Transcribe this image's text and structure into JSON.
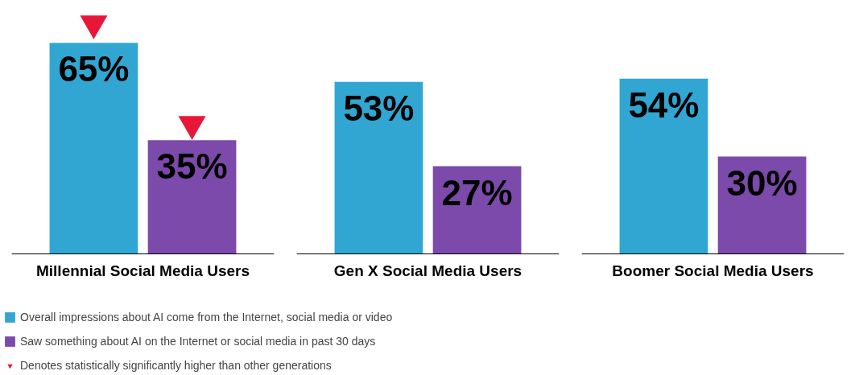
{
  "chart_data": {
    "type": "bar",
    "categories": [
      "Millennial Social Media Users",
      "Gen X Social Media Users",
      "Boomer Social Media Users"
    ],
    "series": [
      {
        "name": "Overall impressions about AI come from the Internet, social media or video",
        "color": "#31a6d2",
        "values": [
          65,
          53,
          54
        ],
        "value_labels": [
          "65%",
          "53%",
          "54%"
        ]
      },
      {
        "name": "Saw something about AI on the Internet or social media in past 30 days",
        "color": "#7b4aab",
        "values": [
          35,
          27,
          30
        ],
        "value_labels": [
          "35%",
          "27%",
          "30%"
        ]
      },
      {
        "type": "scatter",
        "name": "Denotes statistically significantly higher than other generations",
        "color": "#e8173a",
        "marker": "triangle",
        "x": [
          "Millennial Social Media Users",
          "Millennial Social Media Users"
        ],
        "values": [
          71,
          40
        ]
      }
    ],
    "legend": "bottom left",
    "grid": false
  }
}
